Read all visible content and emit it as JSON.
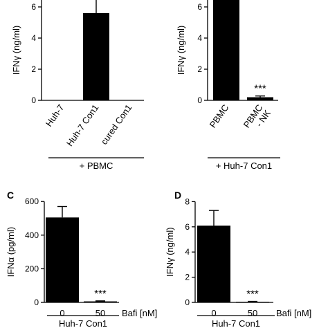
{
  "chart_data": [
    {
      "type": "bar",
      "panel": "",
      "ylabel": "IFNγ (ng/ml)",
      "ylim": [
        0,
        8
      ],
      "yticks": [
        "0",
        "2",
        "4",
        "6"
      ],
      "categories": [
        "Huh-7",
        "Huh-7 Con1",
        "cured Con1"
      ],
      "values": [
        0,
        5.6,
        0
      ],
      "errors": [
        0,
        1.1,
        0
      ],
      "significance": [
        "",
        "***",
        ""
      ],
      "group_label": "+ PBMC",
      "color": "#000000"
    },
    {
      "type": "bar",
      "panel": "",
      "ylabel": "IFNγ (ng/ml)",
      "ylim": [
        0,
        8
      ],
      "yticks": [
        "0",
        "2",
        "4",
        "6"
      ],
      "categories": [
        "PBMC",
        "PBMC\n- NK"
      ],
      "values": [
        6.9,
        0.2
      ],
      "errors": [
        0.5,
        0.08
      ],
      "significance": [
        "",
        "***"
      ],
      "group_label": "+ Huh-7 Con1",
      "color": "#000000"
    },
    {
      "type": "bar",
      "panel": "C",
      "ylabel": "IFNα (pg/ml)",
      "ylim": [
        0,
        600
      ],
      "yticks": [
        "0",
        "200",
        "400",
        "600"
      ],
      "categories": [
        "0",
        "50"
      ],
      "xunit": "Bafi [nM]",
      "values": [
        505,
        6
      ],
      "errors": [
        65,
        3
      ],
      "significance": [
        "",
        "***"
      ],
      "group_label": "Huh-7 Con1",
      "color": "#000000"
    },
    {
      "type": "bar",
      "panel": "D",
      "ylabel": "IFNγ (ng/ml)",
      "ylim": [
        0,
        8
      ],
      "yticks": [
        "0",
        "2",
        "4",
        "6",
        "8"
      ],
      "categories": [
        "0",
        "50"
      ],
      "xunit": "Bafi [nM]",
      "values": [
        6.1,
        0.05
      ],
      "errors": [
        1.2,
        0.03
      ],
      "significance": [
        "",
        "***"
      ],
      "group_label": "Huh-7 Con1",
      "color": "#000000"
    }
  ]
}
